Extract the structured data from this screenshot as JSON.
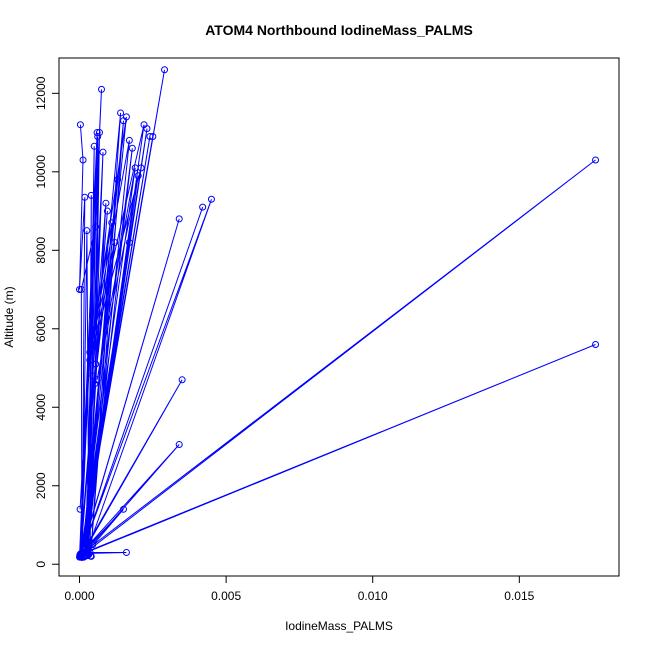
{
  "chart_data": {
    "type": "line",
    "title": "ATOM4 Northbound IodineMass_PALMS",
    "xlabel": "IodineMass_PALMS",
    "ylabel": "Altitude (m)",
    "xlim": [
      -0.0007,
      0.0184
    ],
    "ylim": [
      -300,
      12900
    ],
    "xticks": [
      0.0,
      0.005,
      0.01,
      0.015
    ],
    "xtick_labels": [
      "0.000",
      "0.005",
      "0.010",
      "0.015"
    ],
    "yticks": [
      0,
      2000,
      4000,
      6000,
      8000,
      10000,
      12000
    ],
    "ytick_labels": [
      "0",
      "2000",
      "4000",
      "6000",
      "8000",
      "10000",
      "12000"
    ],
    "grid": false,
    "legend": "none",
    "color": "#0000ff",
    "series": [
      {
        "x": [
          3e-05,
          0.00012,
          0.0,
          0.00018,
          9e-05,
          0.00025,
          0.00032,
          0.0004,
          0.00036,
          0.0005,
          0.00028,
          0.00062,
          0.00055,
          0.00068,
          0.0003,
          0.0008,
          0.00045,
          0.0009,
          0.00022,
          0.0011,
          0.00035,
          0.0012,
          0.00015,
          0.0013,
          0.00052,
          0.0014,
          0.00038,
          0.0015,
          8e-05,
          0.0016,
          0.00042,
          0.0017,
          0.00025,
          0.0018,
          5e-05,
          0.0019,
          0.0006,
          0.002,
          0.0001,
          0.0021,
          0.00035,
          0.0022,
          0.00015,
          0.0023,
          4e-05,
          0.00095,
          2e-05,
          0.0017,
          8e-05,
          0.0024,
          3e-05,
          0.0025,
          6e-05,
          0.0029,
          4e-05,
          0.00075,
          0.0,
          0.0006,
          0.0002,
          0.0045,
          3e-05,
          0.0042,
          5e-05,
          0.0034,
          3e-05,
          0.0035,
          5e-05,
          0.0034,
          2e-05,
          0.0176,
          1e-05,
          0.0176,
          0.0003,
          0.0015,
          0.0001,
          0.0016,
          5e-05,
          0.00045,
          3e-05,
          0.0004,
          8e-05,
          6e-05,
          0.00055,
          2e-05
        ],
        "y": [
          11200,
          10300,
          7000,
          9350,
          200,
          8500,
          250,
          9400,
          300,
          10650,
          220,
          10900,
          5100,
          11000,
          260,
          10500,
          4800,
          9200,
          230,
          8700,
          5400,
          8200,
          180,
          9800,
          4600,
          11500,
          210,
          11300,
          170,
          11400,
          5600,
          10800,
          240,
          10600,
          190,
          10100,
          4700,
          9900,
          260,
          10100,
          5200,
          11200,
          230,
          11100,
          200,
          9000,
          210,
          8200,
          260,
          10900,
          190,
          10900,
          220,
          12600,
          250,
          12100,
          180,
          11000,
          210,
          9300,
          200,
          9100,
          240,
          8800,
          210,
          4700,
          190,
          3050,
          250,
          5600,
          230,
          10300,
          350,
          1400,
          300,
          300,
          270,
          500,
          260,
          200,
          280,
          7000,
          8600,
          1400
        ]
      }
    ]
  }
}
